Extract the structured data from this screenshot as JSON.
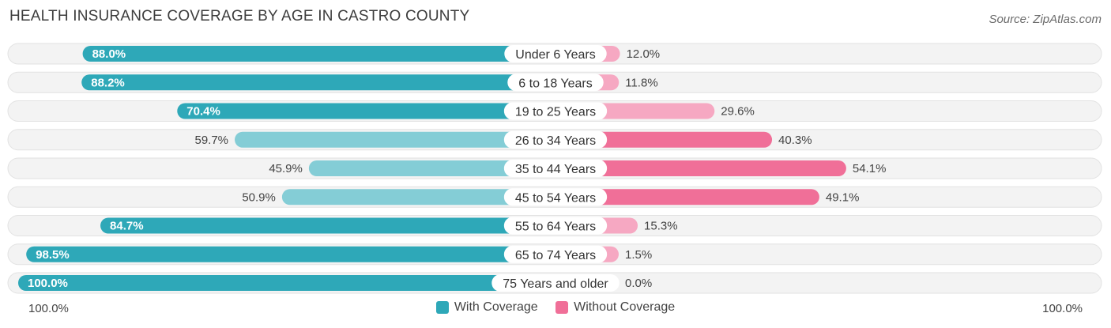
{
  "title": "HEALTH INSURANCE COVERAGE BY AGE IN CASTRO COUNTY",
  "source": "Source: ZipAtlas.com",
  "colors": {
    "with": "#2ea8b8",
    "with_light": "#84cdd6",
    "without": "#f06f98",
    "without_light": "#f6a8c2"
  },
  "chart_data": {
    "type": "bar",
    "orientation": "horizontal-diverging",
    "categories": [
      "Under 6 Years",
      "6 to 18 Years",
      "19 to 25 Years",
      "26 to 34 Years",
      "35 to 44 Years",
      "45 to 54 Years",
      "55 to 64 Years",
      "65 to 74 Years",
      "75 Years and older"
    ],
    "series": [
      {
        "name": "With Coverage",
        "values": [
          88.0,
          88.2,
          70.4,
          59.7,
          45.9,
          50.9,
          84.7,
          98.5,
          100.0
        ],
        "labels": [
          "88.0%",
          "88.2%",
          "70.4%",
          "59.7%",
          "45.9%",
          "50.9%",
          "84.7%",
          "98.5%",
          "100.0%"
        ]
      },
      {
        "name": "Without Coverage",
        "values": [
          12.0,
          11.8,
          29.6,
          40.3,
          54.1,
          49.1,
          15.3,
          1.5,
          0.0
        ],
        "labels": [
          "12.0%",
          "11.8%",
          "29.6%",
          "40.3%",
          "54.1%",
          "49.1%",
          "15.3%",
          "1.5%",
          "0.0%"
        ]
      }
    ],
    "xlim": [
      -100,
      100
    ],
    "axis_left_label": "100.0%",
    "axis_right_label": "100.0%",
    "legend": [
      "With Coverage",
      "Without Coverage"
    ]
  }
}
